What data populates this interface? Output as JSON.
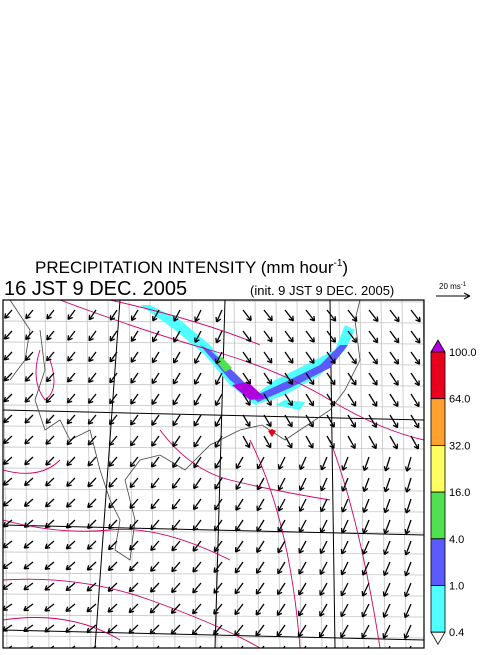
{
  "header": {
    "title": {
      "text": "PRECIPITATION INTENSITY (mm hour",
      "superscript": "-1",
      "close": ")"
    },
    "valid_time": "16 JST 9 DEC. 2005",
    "init_time": "(init. 9 JST 9 DEC. 2005)"
  },
  "wind_scale": {
    "text": "20 ms",
    "superscript": "-1"
  },
  "colorbar": {
    "levels": [
      "100.0",
      "64.0",
      "32.0",
      "16.0",
      "4.0",
      "1.0",
      "0.4"
    ],
    "colors": [
      "#b000e0",
      "#e8001c",
      "#ffa030",
      "#ffff60",
      "#50e050",
      "#5a5aff",
      "#50ffff",
      "#ffffff"
    ]
  }
}
